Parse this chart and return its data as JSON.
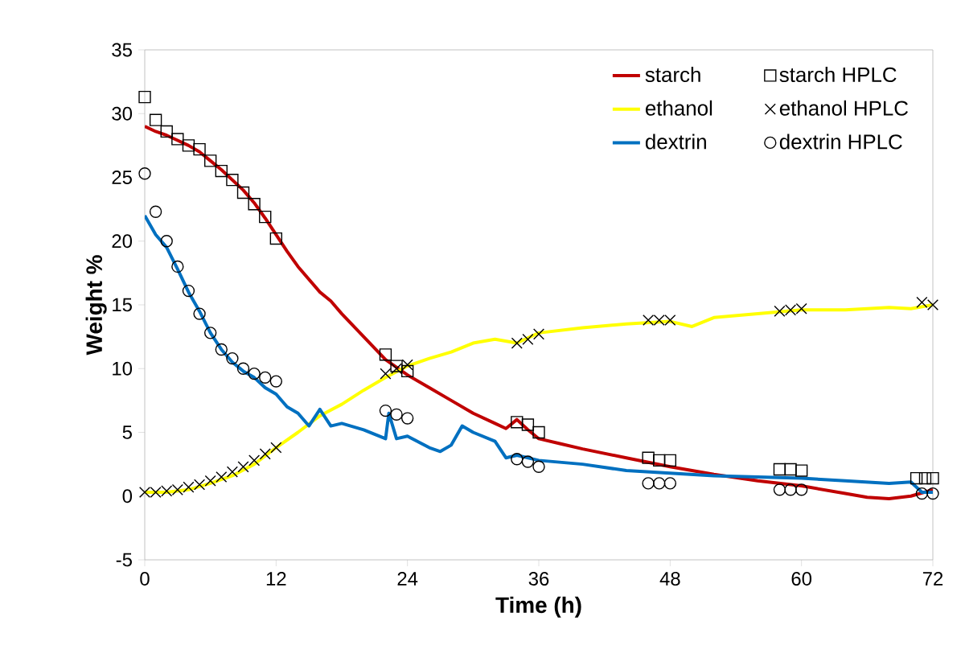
{
  "chart_data": {
    "type": "line",
    "xlabel": "Time (h)",
    "ylabel": "Weight %",
    "xlim": [
      0,
      72
    ],
    "xticks": [
      0,
      12,
      24,
      36,
      48,
      60,
      72
    ],
    "ylim": [
      -5,
      35
    ],
    "yticks": [
      -5,
      0,
      5,
      10,
      15,
      20,
      25,
      30,
      35
    ],
    "grid": false,
    "legend": "top right",
    "series": [
      {
        "name": "starch",
        "type": "line",
        "marker": "none",
        "color": "#c00000",
        "x": [
          0,
          1,
          2,
          3,
          4,
          5,
          6,
          7,
          8,
          9,
          10,
          11,
          12,
          13,
          14,
          15,
          16,
          17,
          18,
          20,
          22,
          24,
          26,
          28,
          30,
          32,
          33,
          34,
          35,
          36,
          38,
          40,
          44,
          48,
          52,
          56,
          60,
          64,
          66,
          68,
          70,
          72
        ],
        "values": [
          29.0,
          28.6,
          28.3,
          27.9,
          27.5,
          27.0,
          26.3,
          25.6,
          24.8,
          24.0,
          23.0,
          21.8,
          20.5,
          19.2,
          18.0,
          17.0,
          16.0,
          15.3,
          14.3,
          12.5,
          10.7,
          9.5,
          8.5,
          7.5,
          6.5,
          5.7,
          5.3,
          6.0,
          5.2,
          4.5,
          4.1,
          3.7,
          3.0,
          2.3,
          1.7,
          1.2,
          0.8,
          0.2,
          -0.1,
          -0.2,
          0.0,
          0.5
        ]
      },
      {
        "name": "starch HPLC",
        "type": "scatter",
        "marker": "square",
        "color": "#000000",
        "x": [
          0,
          1,
          2,
          3,
          4,
          5,
          6,
          7,
          8,
          9,
          10,
          11,
          12,
          22,
          23,
          24,
          34,
          35,
          36,
          46,
          47,
          48,
          58,
          59,
          60,
          70.5,
          71.3,
          72
        ],
        "values": [
          31.3,
          29.5,
          28.6,
          28.0,
          27.5,
          27.2,
          26.3,
          25.5,
          24.8,
          23.8,
          22.9,
          21.9,
          20.2,
          11.1,
          10.2,
          9.8,
          5.8,
          5.6,
          5.0,
          3.0,
          2.8,
          2.8,
          2.1,
          2.1,
          2.0,
          1.4,
          1.4,
          1.4
        ]
      },
      {
        "name": "ethanol",
        "type": "line",
        "marker": "none",
        "color": "#ffff00",
        "x": [
          0,
          2,
          4,
          6,
          8,
          10,
          12,
          14,
          16,
          18,
          20,
          22,
          24,
          26,
          28,
          30,
          32,
          34,
          36,
          40,
          44,
          48,
          50,
          52,
          56,
          60,
          64,
          68,
          70,
          72
        ],
        "values": [
          0.3,
          0.3,
          0.5,
          1.0,
          1.6,
          2.5,
          3.8,
          5.0,
          6.3,
          7.2,
          8.3,
          9.3,
          10.2,
          10.8,
          11.3,
          12.0,
          12.3,
          12.0,
          12.8,
          13.2,
          13.5,
          13.7,
          13.3,
          14.0,
          14.3,
          14.6,
          14.6,
          14.8,
          14.7,
          15.0
        ]
      },
      {
        "name": "ethanol HPLC",
        "type": "scatter",
        "marker": "cross",
        "color": "#000000",
        "x": [
          0,
          1,
          2,
          3,
          4,
          5,
          6,
          7,
          8,
          9,
          10,
          11,
          12,
          22,
          23,
          24,
          34,
          35,
          36,
          46,
          47,
          48,
          58,
          59,
          60,
          71,
          72
        ],
        "values": [
          0.3,
          0.3,
          0.4,
          0.5,
          0.7,
          0.9,
          1.2,
          1.5,
          1.9,
          2.3,
          2.8,
          3.3,
          3.8,
          9.6,
          10.0,
          10.3,
          12.0,
          12.3,
          12.7,
          13.8,
          13.8,
          13.8,
          14.5,
          14.6,
          14.7,
          15.2,
          15.0
        ]
      },
      {
        "name": "dextrin",
        "type": "line",
        "marker": "none",
        "color": "#0070c0",
        "x": [
          0,
          1,
          2,
          3,
          4,
          5,
          6,
          7,
          8,
          9,
          10,
          11,
          12,
          13,
          14,
          15,
          16,
          17,
          18,
          20,
          22,
          22.3,
          23,
          24,
          26,
          27,
          28,
          29,
          30,
          32,
          33,
          34,
          36,
          40,
          44,
          48,
          52,
          56,
          60,
          64,
          68,
          70,
          71,
          72
        ],
        "values": [
          22.0,
          20.5,
          19.5,
          17.8,
          16.0,
          14.5,
          12.8,
          11.5,
          10.5,
          9.8,
          9.3,
          8.5,
          8.0,
          7.0,
          6.5,
          5.5,
          6.8,
          5.5,
          5.7,
          5.2,
          4.5,
          6.5,
          4.5,
          4.7,
          3.8,
          3.5,
          4.0,
          5.5,
          5.0,
          4.3,
          3.0,
          3.2,
          2.8,
          2.5,
          2.0,
          1.8,
          1.6,
          1.5,
          1.4,
          1.2,
          1.0,
          1.1,
          0.3,
          0.3
        ]
      },
      {
        "name": "dextrin HPLC",
        "type": "scatter",
        "marker": "circle",
        "color": "#000000",
        "x": [
          0,
          1,
          2,
          3,
          4,
          5,
          6,
          7,
          8,
          9,
          10,
          11,
          12,
          22,
          23,
          24,
          34,
          35,
          36,
          46,
          47,
          48,
          58,
          59,
          60,
          71,
          72
        ],
        "values": [
          25.3,
          22.3,
          20.0,
          18.0,
          16.1,
          14.3,
          12.8,
          11.5,
          10.8,
          10.0,
          9.6,
          9.3,
          9.0,
          6.7,
          6.4,
          6.1,
          2.9,
          2.7,
          2.3,
          1.0,
          1.0,
          1.0,
          0.5,
          0.5,
          0.5,
          0.2,
          0.2
        ]
      }
    ]
  }
}
